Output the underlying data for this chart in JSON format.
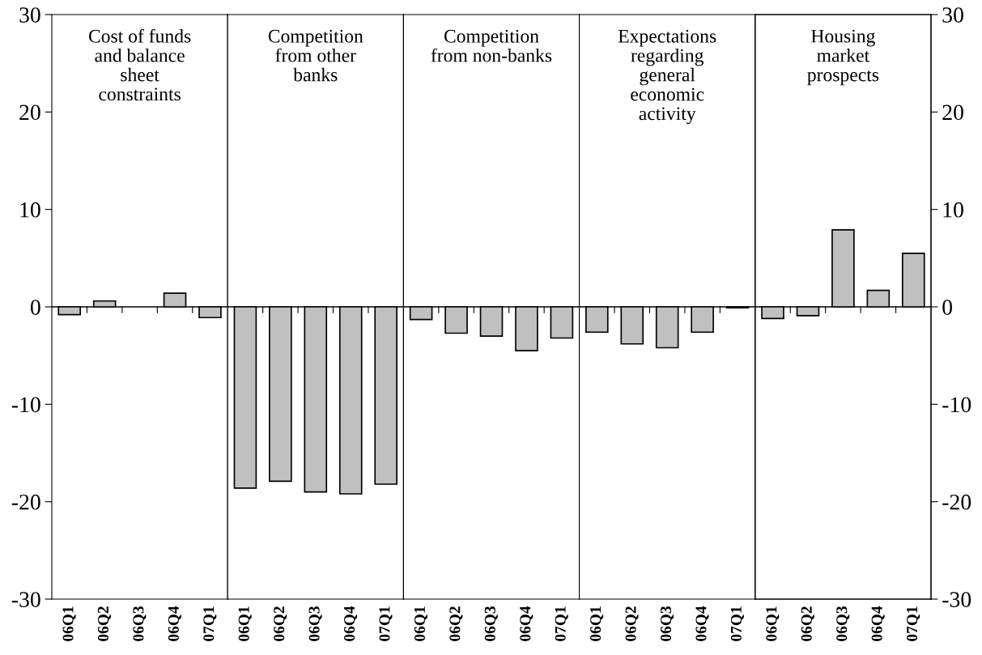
{
  "chart_data": [
    {
      "type": "bar",
      "title": "Cost of funds\nand balance\nsheet\nconstraints",
      "categories": [
        "06Q1",
        "06Q2",
        "06Q3",
        "06Q4",
        "07Q1"
      ],
      "values": [
        -0.8,
        0.6,
        null,
        1.4,
        -1.1
      ],
      "color": "#c0c0c0",
      "ylim": [
        -30,
        30
      ],
      "yticks": [
        -30,
        -20,
        -10,
        0,
        10,
        20,
        30
      ],
      "ref_lines": [
        {
          "axis": "y",
          "value": 0
        }
      ]
    },
    {
      "type": "bar",
      "title": "Competition\nfrom other\nbanks",
      "categories": [
        "06Q1",
        "06Q2",
        "06Q3",
        "06Q4",
        "07Q1"
      ],
      "values": [
        -18.6,
        -17.9,
        -19.0,
        -19.2,
        -18.2
      ],
      "color": "#c0c0c0",
      "ylim": [
        -30,
        30
      ],
      "tick_labels": "x",
      "ref_lines": [
        {
          "axis": "y",
          "value": 0
        }
      ]
    },
    {
      "type": "bar",
      "title": "Competition\nfrom non-banks",
      "categories": [
        "06Q1",
        "06Q2",
        "06Q3",
        "06Q4",
        "07Q1"
      ],
      "values": [
        -1.3,
        -2.7,
        -3.0,
        -4.5,
        -3.2
      ],
      "color": "#c0c0c0",
      "ylim": [
        -30,
        30
      ],
      "tick_labels": "x",
      "ref_lines": [
        {
          "axis": "y",
          "value": 0
        }
      ]
    },
    {
      "type": "bar",
      "title": "Expectations\nregarding\ngeneral\neconomic\nactivity",
      "categories": [
        "06Q1",
        "06Q2",
        "06Q3",
        "06Q4",
        "07Q1"
      ],
      "values": [
        -2.6,
        -3.8,
        -4.2,
        -2.6,
        -0.1
      ],
      "color": "#c0c0c0",
      "ylim": [
        -30,
        30
      ],
      "tick_labels": "x",
      "ref_lines": [
        {
          "axis": "y",
          "value": 0
        }
      ]
    },
    {
      "type": "bar",
      "title": "Housing\nmarket\nprospects",
      "categories": [
        "06Q1",
        "06Q2",
        "06Q3",
        "06Q4",
        "07Q1"
      ],
      "series": [
        {
          "values": [
            -1.2,
            -0.9,
            7.9,
            1.7,
            5.5
          ],
          "color": "#c0c0c0",
          "axis": "y2"
        }
      ],
      "y2lim": [
        -30,
        30
      ],
      "y2ticks": [
        -30,
        -20,
        -10,
        0,
        10,
        20,
        30
      ],
      "ref_lines": [
        {
          "axis": "y2",
          "value": 0
        }
      ]
    }
  ]
}
